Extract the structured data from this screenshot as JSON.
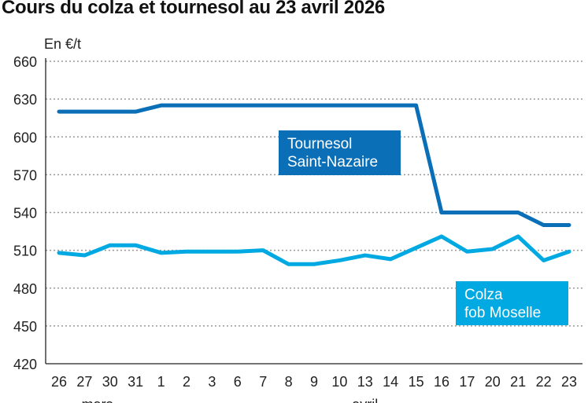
{
  "chart_data": {
    "type": "line",
    "title": "Cours du colza et tournesol au 23 avril 2026",
    "ylabel": "En €/t",
    "xlabel": "",
    "ylim": [
      420,
      660
    ],
    "yticks": [
      420,
      450,
      480,
      510,
      540,
      570,
      600,
      630,
      660
    ],
    "grid": true,
    "categories": [
      "26",
      "27",
      "30",
      "31",
      "1",
      "2",
      "3",
      "6",
      "7",
      "8",
      "9",
      "10",
      "13",
      "14",
      "15",
      "16",
      "17",
      "20",
      "21",
      "22",
      "23"
    ],
    "month_labels": [
      {
        "label": "mars",
        "start_index": 0,
        "end_index": 3
      },
      {
        "label": "avril",
        "start_index": 4,
        "end_index": 20
      }
    ],
    "series": [
      {
        "name": "Tournesol Saint-Nazaire",
        "name_lines": [
          "Tournesol",
          "Saint-Nazaire"
        ],
        "color": "#0a6fb6",
        "values": [
          620,
          620,
          620,
          620,
          625,
          625,
          625,
          625,
          625,
          625,
          625,
          625,
          625,
          625,
          625,
          540,
          540,
          540,
          540,
          530,
          530
        ]
      },
      {
        "name": "Colza fob Moselle",
        "name_lines": [
          "Colza",
          "fob Moselle"
        ],
        "color": "#00a9e2",
        "values": [
          508,
          506,
          514,
          514,
          508,
          509,
          509,
          509,
          510,
          499,
          499,
          502,
          506,
          503,
          512,
          521,
          509,
          511,
          521,
          502,
          509
        ]
      }
    ]
  }
}
